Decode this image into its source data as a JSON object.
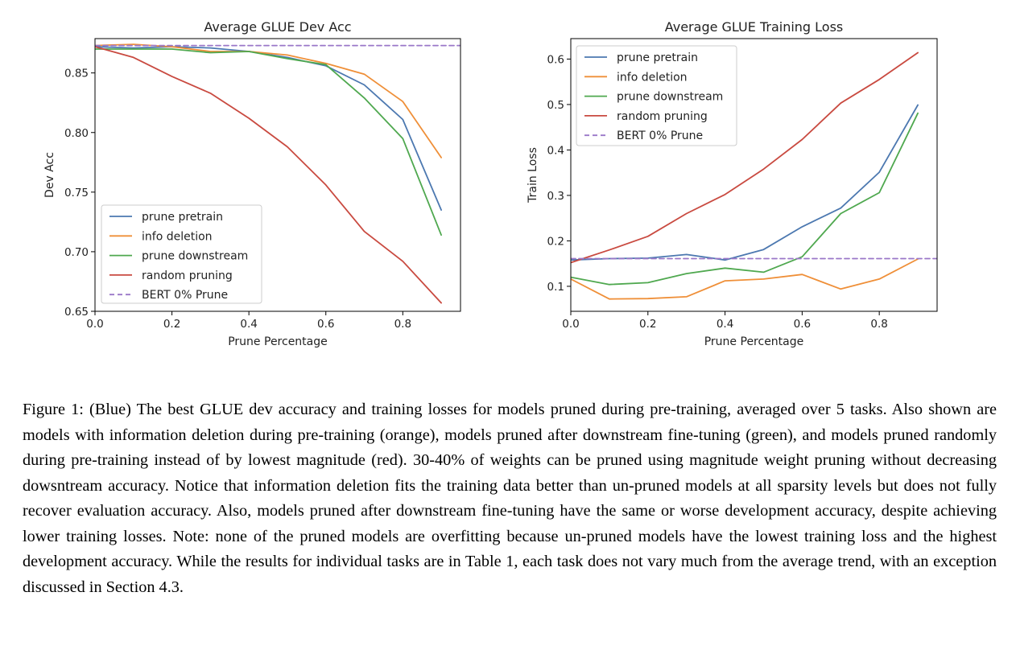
{
  "chart_data": [
    {
      "type": "line",
      "title": "Average GLUE Dev Acc",
      "xlabel": "Prune Percentage",
      "ylabel": "Dev Acc",
      "xlim": [
        0.0,
        0.95
      ],
      "ylim": [
        0.65,
        0.8788
      ],
      "xticks": [
        0.0,
        0.2,
        0.4,
        0.6,
        0.8
      ],
      "xtick_labels": [
        "0.0",
        "0.2",
        "0.4",
        "0.6",
        "0.8"
      ],
      "yticks": [
        0.65,
        0.7,
        0.75,
        0.8,
        0.85
      ],
      "ytick_labels": [
        "0.65",
        "0.70",
        "0.75",
        "0.80",
        "0.85"
      ],
      "grid": false,
      "legend_position": "lower-left",
      "x": [
        0.0,
        0.1,
        0.2,
        0.3,
        0.4,
        0.5,
        0.6,
        0.7,
        0.8,
        0.9
      ],
      "series": [
        {
          "name": "prune pretrain",
          "color": "#4c78b0",
          "dashed": false,
          "values": [
            0.872,
            0.871,
            0.872,
            0.871,
            0.868,
            0.863,
            0.856,
            0.84,
            0.811,
            0.735
          ]
        },
        {
          "name": "info deletion",
          "color": "#ef8f38",
          "dashed": false,
          "values": [
            0.873,
            0.874,
            0.872,
            0.868,
            0.868,
            0.865,
            0.858,
            0.849,
            0.826,
            0.779
          ]
        },
        {
          "name": "prune downstream",
          "color": "#4fa84f",
          "dashed": false,
          "values": [
            0.87,
            0.87,
            0.87,
            0.867,
            0.868,
            0.862,
            0.857,
            0.829,
            0.795,
            0.714
          ]
        },
        {
          "name": "random pruning",
          "color": "#c94a40",
          "dashed": false,
          "values": [
            0.872,
            0.863,
            0.847,
            0.833,
            0.812,
            0.788,
            0.756,
            0.717,
            0.692,
            0.657
          ]
        },
        {
          "name": "BERT 0% Prune",
          "color": "#9a77c8",
          "dashed": true,
          "values": [
            0.873,
            0.873,
            0.873,
            0.873,
            0.873,
            0.873,
            0.873,
            0.873,
            0.873,
            0.873
          ]
        }
      ]
    },
    {
      "type": "line",
      "title": "Average GLUE Training Loss",
      "xlabel": "Prune Percentage",
      "ylabel": "Train Loss",
      "xlim": [
        0.0,
        0.95
      ],
      "ylim": [
        0.045,
        0.645
      ],
      "xticks": [
        0.0,
        0.2,
        0.4,
        0.6,
        0.8
      ],
      "xtick_labels": [
        "0.0",
        "0.2",
        "0.4",
        "0.6",
        "0.8"
      ],
      "yticks": [
        0.1,
        0.2,
        0.3,
        0.4,
        0.5,
        0.6
      ],
      "ytick_labels": [
        "0.1",
        "0.2",
        "0.3",
        "0.4",
        "0.5",
        "0.6"
      ],
      "grid": false,
      "legend_position": "upper-left",
      "x": [
        0.0,
        0.1,
        0.2,
        0.3,
        0.4,
        0.5,
        0.6,
        0.7,
        0.8,
        0.9
      ],
      "series": [
        {
          "name": "prune pretrain",
          "color": "#4c78b0",
          "dashed": false,
          "values": [
            0.158,
            0.161,
            0.162,
            0.17,
            0.158,
            0.181,
            0.231,
            0.272,
            0.351,
            0.499
          ]
        },
        {
          "name": "info deletion",
          "color": "#ef8f38",
          "dashed": false,
          "values": [
            0.116,
            0.072,
            0.073,
            0.077,
            0.112,
            0.116,
            0.126,
            0.094,
            0.116,
            0.16
          ]
        },
        {
          "name": "prune downstream",
          "color": "#4fa84f",
          "dashed": false,
          "values": [
            0.12,
            0.104,
            0.108,
            0.128,
            0.14,
            0.131,
            0.165,
            0.26,
            0.306,
            0.481
          ]
        },
        {
          "name": "random pruning",
          "color": "#c94a40",
          "dashed": false,
          "values": [
            0.152,
            0.18,
            0.21,
            0.26,
            0.302,
            0.358,
            0.423,
            0.503,
            0.555,
            0.614
          ]
        },
        {
          "name": "BERT 0% Prune",
          "color": "#9a77c8",
          "dashed": true,
          "values": [
            0.161,
            0.161,
            0.161,
            0.161,
            0.161,
            0.161,
            0.161,
            0.161,
            0.161,
            0.161
          ]
        }
      ]
    }
  ],
  "caption": "Figure 1: (Blue) The best GLUE dev accuracy and training losses for models pruned during pre-training, averaged over 5 tasks. Also shown are models with information deletion during pre-training (orange), models pruned after downstream fine-tuning (green), and models pruned randomly during pre-training instead of by lowest magnitude (red). 30-40% of weights can be pruned using magnitude weight pruning without decreasing dowsntream accuracy. Notice that information deletion fits the training data better than un-pruned models at all sparsity levels but does not fully recover evaluation accuracy. Also, models pruned after downstream fine-tuning have the same or worse development accuracy, despite achieving lower training losses. Note: none of the pruned models are overfitting because un-pruned models have the lowest training loss and the highest development accuracy. While the results for individual tasks are in Table 1, each task does not vary much from the average trend, with an exception discussed in Section 4.3."
}
